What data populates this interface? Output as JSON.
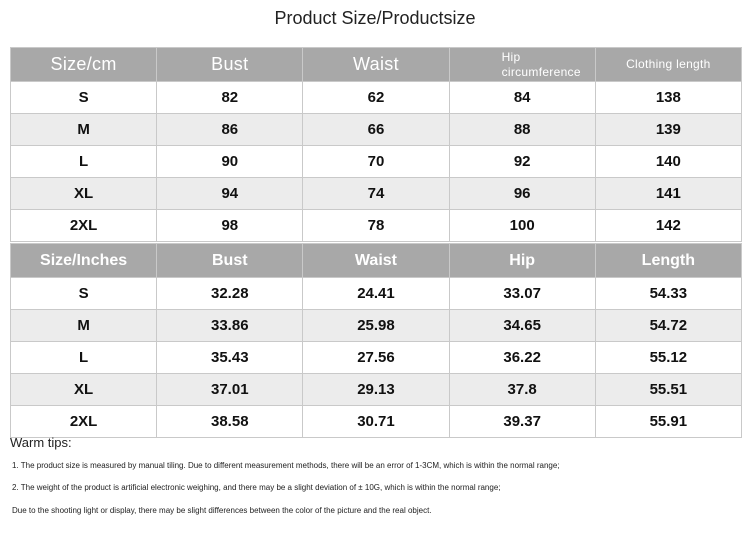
{
  "title": "Product Size/Productsize",
  "table_cm": {
    "headers": [
      "Size/cm",
      "Bust",
      "Waist",
      "Hip circumference",
      "Clothing length"
    ],
    "rows": [
      [
        "S",
        "82",
        "62",
        "84",
        "138"
      ],
      [
        "M",
        "86",
        "66",
        "88",
        "139"
      ],
      [
        "L",
        "90",
        "70",
        "92",
        "140"
      ],
      [
        "XL",
        "94",
        "74",
        "96",
        "141"
      ],
      [
        "2XL",
        "98",
        "78",
        "100",
        "142"
      ]
    ]
  },
  "table_inches": {
    "headers": [
      "Size/Inches",
      "Bust",
      "Waist",
      "Hip",
      "Length"
    ],
    "rows": [
      [
        "S",
        "32.28",
        "24.41",
        "33.07",
        "54.33"
      ],
      [
        "M",
        "33.86",
        "25.98",
        "34.65",
        "54.72"
      ],
      [
        "L",
        "35.43",
        "27.56",
        "36.22",
        "55.12"
      ],
      [
        "XL",
        "37.01",
        "29.13",
        "37.8",
        "55.51"
      ],
      [
        "2XL",
        "38.58",
        "30.71",
        "39.37",
        "55.91"
      ]
    ]
  },
  "tips": {
    "heading": "Warm tips:",
    "items": [
      "1. The product size is measured by manual tiling. Due to different measurement methods, there will be an error of 1-3CM, which is within the normal range;",
      "2. The weight of the product is artificial electronic weighing, and there may be a slight deviation of ± 10G, which is within the normal range;",
      "Due to the shooting light or display, there may be slight differences between the color of the picture and the real object."
    ]
  },
  "colors": {
    "header_bg": "#a8a8a8",
    "header_text": "#ffffff",
    "row_alt_bg": "#ececec",
    "border": "#c9c9c9"
  }
}
